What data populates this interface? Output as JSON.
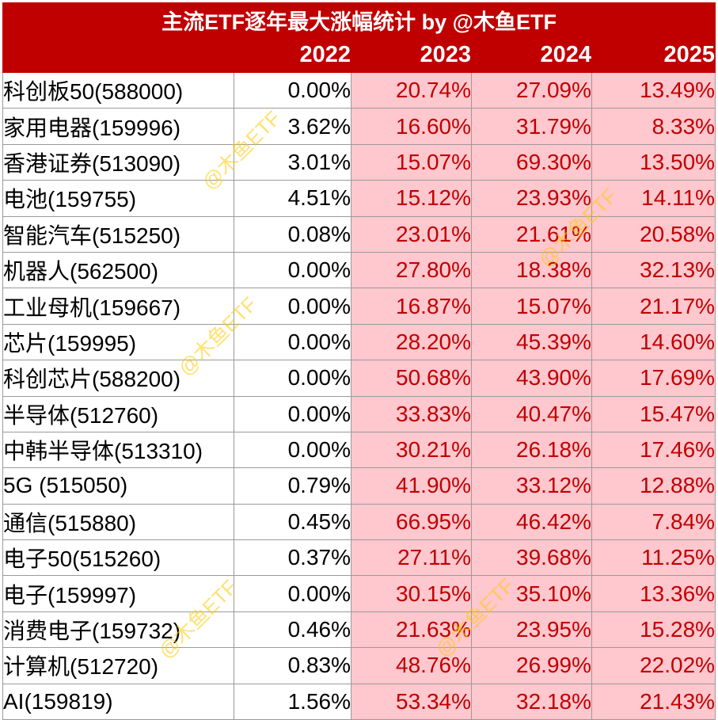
{
  "title": "主流ETF逐年最大涨幅统计 by @木鱼ETF",
  "corner_label": "",
  "years": [
    "2022",
    "2023",
    "2024",
    "2025"
  ],
  "rows": [
    {
      "name": "科创板50(588000)",
      "v2022": "0.00%",
      "v2023": "20.74%",
      "v2024": "27.09%",
      "v2025": "13.49%"
    },
    {
      "name": "家用电器(159996)",
      "v2022": "3.62%",
      "v2023": "16.60%",
      "v2024": "31.79%",
      "v2025": "8.33%"
    },
    {
      "name": "香港证券(513090)",
      "v2022": "3.01%",
      "v2023": "15.07%",
      "v2024": "69.30%",
      "v2025": "13.50%"
    },
    {
      "name": "电池(159755)",
      "v2022": "4.51%",
      "v2023": "15.12%",
      "v2024": "23.93%",
      "v2025": "14.11%"
    },
    {
      "name": "智能汽车(515250)",
      "v2022": "0.08%",
      "v2023": "23.01%",
      "v2024": "21.61%",
      "v2025": "20.58%"
    },
    {
      "name": "机器人(562500)",
      "v2022": "0.00%",
      "v2023": "27.80%",
      "v2024": "18.38%",
      "v2025": "32.13%"
    },
    {
      "name": "工业母机(159667)",
      "v2022": "0.00%",
      "v2023": "16.87%",
      "v2024": "15.07%",
      "v2025": "21.17%"
    },
    {
      "name": "芯片(159995)",
      "v2022": "0.00%",
      "v2023": "28.20%",
      "v2024": "45.39%",
      "v2025": "14.60%"
    },
    {
      "name": "科创芯片(588200)",
      "v2022": "0.00%",
      "v2023": "50.68%",
      "v2024": "43.90%",
      "v2025": "17.69%"
    },
    {
      "name": "半导体(512760)",
      "v2022": "0.00%",
      "v2023": "33.83%",
      "v2024": "40.47%",
      "v2025": "15.47%"
    },
    {
      "name": "中韩半导体(513310)",
      "v2022": "0.00%",
      "v2023": "30.21%",
      "v2024": "26.18%",
      "v2025": "17.46%"
    },
    {
      "name": "5G (515050)",
      "v2022": "0.79%",
      "v2023": "41.90%",
      "v2024": "33.12%",
      "v2025": "12.88%"
    },
    {
      "name": "通信(515880)",
      "v2022": "0.45%",
      "v2023": "66.95%",
      "v2024": "46.42%",
      "v2025": "7.84%"
    },
    {
      "name": "电子50(515260)",
      "v2022": "0.37%",
      "v2023": "27.11%",
      "v2024": "39.68%",
      "v2025": "11.25%"
    },
    {
      "name": "电子(159997)",
      "v2022": "0.00%",
      "v2023": "30.15%",
      "v2024": "35.10%",
      "v2025": "13.36%"
    },
    {
      "name": "消费电子(159732)",
      "v2022": "0.46%",
      "v2023": "21.63%",
      "v2024": "23.95%",
      "v2025": "15.28%"
    },
    {
      "name": "计算机(512720)",
      "v2022": "0.83%",
      "v2023": "48.76%",
      "v2024": "26.99%",
      "v2025": "22.02%"
    },
    {
      "name": "AI(159819)",
      "v2022": "1.56%",
      "v2023": "53.34%",
      "v2024": "32.18%",
      "v2025": "21.43%"
    }
  ],
  "watermark": "@木鱼ETF",
  "colors": {
    "header_bg": "#c00000",
    "header_text": "#ffffff",
    "highlight_bg": "#ffc7ce",
    "highlight_text": "#c00000",
    "watermark": "#ffc800"
  }
}
